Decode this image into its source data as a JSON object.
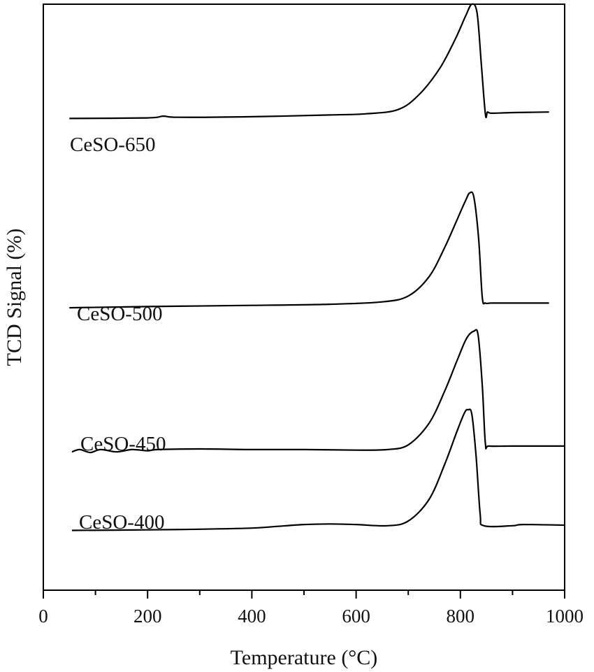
{
  "chart_data": {
    "type": "line",
    "title": "",
    "xlabel": "Temperature (°C)",
    "ylabel": "TCD Signal (%)",
    "xlim": [
      0,
      1000
    ],
    "x_ticks_major": [
      0,
      200,
      400,
      600,
      800,
      1000
    ],
    "x_ticks_minor": [
      100,
      300,
      500,
      700,
      900
    ],
    "tick_labels": [
      "0",
      "200",
      "400",
      "600",
      "800",
      "1000"
    ],
    "y_ticks": [],
    "grid": false,
    "legend": "inline labels above each curve",
    "ylim": [
      0,
      100
    ],
    "series": [
      {
        "name": "CeSO-650",
        "x": [
          50,
          200,
          230,
          260,
          400,
          550,
          620,
          680,
          720,
          760,
          790,
          810,
          822,
          832,
          840,
          848,
          852,
          860,
          900,
          970
        ],
        "y": [
          80.5,
          80.6,
          80.9,
          80.7,
          80.8,
          81.1,
          81.3,
          82.0,
          84.5,
          89.0,
          94.0,
          98.0,
          100.0,
          98.5,
          90.0,
          81.2,
          81.6,
          81.4,
          81.5,
          81.6
        ]
      },
      {
        "name": "CeSO-500",
        "x": [
          50,
          200,
          400,
          550,
          650,
          700,
          740,
          770,
          795,
          810,
          818,
          826,
          835,
          842,
          848,
          860,
          900,
          970
        ],
        "y": [
          48.2,
          48.4,
          48.6,
          48.8,
          49.2,
          50.2,
          53.5,
          58.5,
          63.5,
          66.5,
          67.8,
          67.0,
          60.0,
          50.0,
          49.0,
          49.0,
          49.0,
          49.0
        ]
      },
      {
        "name": "CeSO-450",
        "x": [
          55,
          70,
          90,
          110,
          140,
          170,
          200,
          220,
          300,
          400,
          500,
          600,
          660,
          700,
          740,
          770,
          795,
          812,
          826,
          834,
          842,
          848,
          855,
          900,
          1000
        ],
        "y": [
          23.6,
          24.0,
          23.5,
          24.0,
          23.6,
          24.0,
          23.8,
          24.0,
          24.1,
          24.0,
          24.0,
          23.9,
          24.0,
          24.8,
          28.5,
          34.0,
          39.5,
          43.0,
          44.2,
          43.5,
          35.0,
          25.0,
          24.6,
          24.6,
          24.6
        ]
      },
      {
        "name": "CeSO-400",
        "x": [
          55,
          200,
          300,
          400,
          450,
          500,
          550,
          600,
          660,
          700,
          740,
          770,
          793,
          808,
          815,
          822,
          830,
          838,
          845,
          900,
          920,
          1000
        ],
        "y": [
          10.2,
          10.3,
          10.4,
          10.6,
          10.9,
          11.2,
          11.3,
          11.2,
          11.0,
          11.8,
          15.5,
          21.5,
          27.0,
          30.3,
          30.8,
          30.0,
          23.0,
          13.0,
          11.0,
          11.0,
          11.2,
          11.1
        ]
      }
    ],
    "annotations": [
      "CeSO-650",
      "CeSO-500",
      "CeSO-450",
      "CeSO-400"
    ]
  }
}
